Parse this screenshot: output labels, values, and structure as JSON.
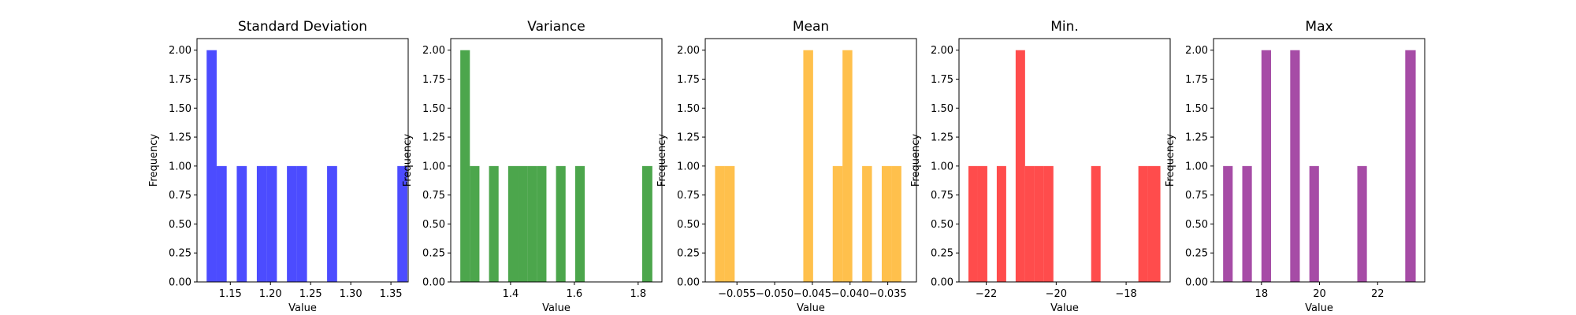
{
  "chart_data": [
    {
      "type": "bar",
      "title": "Standard Deviation",
      "xlabel": "Value",
      "ylabel": "Frequency",
      "color": "#0000ff",
      "xlim": [
        1.1085,
        1.3715
      ],
      "ylim": [
        0,
        2.1
      ],
      "xticks": [
        1.15,
        1.2,
        1.25,
        1.3,
        1.35
      ],
      "xtick_labels": [
        "1.15",
        "1.20",
        "1.25",
        "1.30",
        "1.35"
      ],
      "yticks": [
        0,
        0.25,
        0.5,
        0.75,
        1,
        1.25,
        1.5,
        1.75,
        2
      ],
      "ytick_labels": [
        "0.00",
        "0.25",
        "0.50",
        "0.75",
        "1.00",
        "1.25",
        "1.50",
        "1.75",
        "2.00"
      ],
      "bins": [
        {
          "x0": 1.1205,
          "x1": 1.133,
          "count": 2
        },
        {
          "x0": 1.133,
          "x1": 1.1455,
          "count": 1
        },
        {
          "x0": 1.1455,
          "x1": 1.158,
          "count": 0
        },
        {
          "x0": 1.158,
          "x1": 1.1705,
          "count": 1
        },
        {
          "x0": 1.1705,
          "x1": 1.183,
          "count": 0
        },
        {
          "x0": 1.183,
          "x1": 1.1955,
          "count": 1
        },
        {
          "x0": 1.1955,
          "x1": 1.208,
          "count": 1
        },
        {
          "x0": 1.208,
          "x1": 1.2205,
          "count": 0
        },
        {
          "x0": 1.2205,
          "x1": 1.233,
          "count": 1
        },
        {
          "x0": 1.233,
          "x1": 1.2455,
          "count": 1
        },
        {
          "x0": 1.2455,
          "x1": 1.258,
          "count": 0
        },
        {
          "x0": 1.258,
          "x1": 1.2705,
          "count": 0
        },
        {
          "x0": 1.2705,
          "x1": 1.283,
          "count": 1
        },
        {
          "x0": 1.283,
          "x1": 1.2955,
          "count": 0
        },
        {
          "x0": 1.2955,
          "x1": 1.308,
          "count": 0
        },
        {
          "x0": 1.308,
          "x1": 1.3205,
          "count": 0
        },
        {
          "x0": 1.3205,
          "x1": 1.333,
          "count": 0
        },
        {
          "x0": 1.333,
          "x1": 1.3455,
          "count": 0
        },
        {
          "x0": 1.3455,
          "x1": 1.358,
          "count": 0
        },
        {
          "x0": 1.358,
          "x1": 1.3705,
          "count": 1
        }
      ]
    },
    {
      "type": "bar",
      "title": "Variance",
      "xlabel": "Value",
      "ylabel": "Frequency",
      "color": "#008000",
      "xlim": [
        1.2125,
        1.8745
      ],
      "ylim": [
        0,
        2.1
      ],
      "xticks": [
        1.4,
        1.6,
        1.8
      ],
      "xtick_labels": [
        "1.4",
        "1.6",
        "1.8"
      ],
      "yticks": [
        0,
        0.25,
        0.5,
        0.75,
        1,
        1.25,
        1.5,
        1.75,
        2
      ],
      "ytick_labels": [
        "0.00",
        "0.25",
        "0.50",
        "0.75",
        "1.00",
        "1.25",
        "1.50",
        "1.75",
        "2.00"
      ],
      "bins": [
        {
          "x0": 1.2425,
          "x1": 1.2725,
          "count": 2
        },
        {
          "x0": 1.2725,
          "x1": 1.3025,
          "count": 1
        },
        {
          "x0": 1.3025,
          "x1": 1.3325,
          "count": 0
        },
        {
          "x0": 1.3325,
          "x1": 1.3625,
          "count": 1
        },
        {
          "x0": 1.3625,
          "x1": 1.3925,
          "count": 0
        },
        {
          "x0": 1.3925,
          "x1": 1.4225,
          "count": 1
        },
        {
          "x0": 1.4225,
          "x1": 1.4525,
          "count": 1
        },
        {
          "x0": 1.4525,
          "x1": 1.4825,
          "count": 1
        },
        {
          "x0": 1.4825,
          "x1": 1.5125,
          "count": 1
        },
        {
          "x0": 1.5125,
          "x1": 1.5425,
          "count": 0
        },
        {
          "x0": 1.5425,
          "x1": 1.5725,
          "count": 1
        },
        {
          "x0": 1.5725,
          "x1": 1.6025,
          "count": 0
        },
        {
          "x0": 1.6025,
          "x1": 1.6325,
          "count": 1
        },
        {
          "x0": 1.6325,
          "x1": 1.6625,
          "count": 0
        },
        {
          "x0": 1.6625,
          "x1": 1.6925,
          "count": 0
        },
        {
          "x0": 1.6925,
          "x1": 1.7225,
          "count": 0
        },
        {
          "x0": 1.7225,
          "x1": 1.7525,
          "count": 0
        },
        {
          "x0": 1.7525,
          "x1": 1.7825,
          "count": 0
        },
        {
          "x0": 1.7825,
          "x1": 1.8125,
          "count": 0
        },
        {
          "x0": 1.8125,
          "x1": 1.8445,
          "count": 1
        }
      ]
    },
    {
      "type": "bar",
      "title": "Mean",
      "xlabel": "Value",
      "ylabel": "Frequency",
      "color": "#ffa500",
      "xlim": [
        -0.0592,
        -0.0312
      ],
      "ylim": [
        0,
        2.1
      ],
      "xticks": [
        -0.055,
        -0.05,
        -0.045,
        -0.04,
        -0.035
      ],
      "xtick_labels": [
        "−0.055",
        "−0.050",
        "−0.045",
        "−0.040",
        "−0.035"
      ],
      "yticks": [
        0,
        0.25,
        0.5,
        0.75,
        1,
        1.25,
        1.5,
        1.75,
        2
      ],
      "ytick_labels": [
        "0.00",
        "0.25",
        "0.50",
        "0.75",
        "1.00",
        "1.25",
        "1.50",
        "1.75",
        "2.00"
      ],
      "bins": [
        {
          "x0": -0.0579,
          "x1": -0.0566,
          "count": 1
        },
        {
          "x0": -0.0566,
          "x1": -0.0553,
          "count": 1
        },
        {
          "x0": -0.0553,
          "x1": -0.054,
          "count": 0
        },
        {
          "x0": -0.054,
          "x1": -0.0527,
          "count": 0
        },
        {
          "x0": -0.0527,
          "x1": -0.0514,
          "count": 0
        },
        {
          "x0": -0.0514,
          "x1": -0.0501,
          "count": 0
        },
        {
          "x0": -0.0501,
          "x1": -0.0488,
          "count": 0
        },
        {
          "x0": -0.0488,
          "x1": -0.0475,
          "count": 0
        },
        {
          "x0": -0.0475,
          "x1": -0.0462,
          "count": 0
        },
        {
          "x0": -0.0462,
          "x1": -0.0449,
          "count": 2
        },
        {
          "x0": -0.0449,
          "x1": -0.0436,
          "count": 0
        },
        {
          "x0": -0.0436,
          "x1": -0.0423,
          "count": 0
        },
        {
          "x0": -0.0423,
          "x1": -0.041,
          "count": 1
        },
        {
          "x0": -0.041,
          "x1": -0.0397,
          "count": 2
        },
        {
          "x0": -0.0397,
          "x1": -0.0384,
          "count": 0
        },
        {
          "x0": -0.0384,
          "x1": -0.0371,
          "count": 1
        },
        {
          "x0": -0.0371,
          "x1": -0.0358,
          "count": 0
        },
        {
          "x0": -0.0358,
          "x1": -0.0345,
          "count": 1
        },
        {
          "x0": -0.0345,
          "x1": -0.0332,
          "count": 1
        },
        {
          "x0": -0.0332,
          "x1": -0.0325,
          "count": 0
        }
      ]
    },
    {
      "type": "bar",
      "title": "Min.",
      "xlabel": "Value",
      "ylabel": "Frequency",
      "color": "#ff0000",
      "xlim": [
        -22.78,
        -16.74
      ],
      "ylim": [
        0,
        2.1
      ],
      "xticks": [
        -22,
        -20,
        -18
      ],
      "xtick_labels": [
        "−22",
        "−20",
        "−18"
      ],
      "yticks": [
        0,
        0.25,
        0.5,
        0.75,
        1,
        1.25,
        1.5,
        1.75,
        2
      ],
      "ytick_labels": [
        "0.00",
        "0.25",
        "0.50",
        "0.75",
        "1.00",
        "1.25",
        "1.50",
        "1.75",
        "2.00"
      ],
      "bins": [
        {
          "x0": -22.51,
          "x1": -22.24,
          "count": 1
        },
        {
          "x0": -22.24,
          "x1": -21.97,
          "count": 1
        },
        {
          "x0": -21.97,
          "x1": -21.7,
          "count": 0
        },
        {
          "x0": -21.7,
          "x1": -21.43,
          "count": 1
        },
        {
          "x0": -21.43,
          "x1": -21.16,
          "count": 0
        },
        {
          "x0": -21.16,
          "x1": -20.89,
          "count": 2
        },
        {
          "x0": -20.89,
          "x1": -20.62,
          "count": 1
        },
        {
          "x0": -20.62,
          "x1": -20.35,
          "count": 1
        },
        {
          "x0": -20.35,
          "x1": -20.08,
          "count": 1
        },
        {
          "x0": -20.08,
          "x1": -19.81,
          "count": 0
        },
        {
          "x0": -19.81,
          "x1": -19.54,
          "count": 0
        },
        {
          "x0": -19.54,
          "x1": -19.27,
          "count": 0
        },
        {
          "x0": -19.27,
          "x1": -19.0,
          "count": 0
        },
        {
          "x0": -19.0,
          "x1": -18.73,
          "count": 1
        },
        {
          "x0": -18.73,
          "x1": -18.46,
          "count": 0
        },
        {
          "x0": -18.46,
          "x1": -18.19,
          "count": 0
        },
        {
          "x0": -18.19,
          "x1": -17.92,
          "count": 0
        },
        {
          "x0": -17.92,
          "x1": -17.65,
          "count": 0
        },
        {
          "x0": -17.65,
          "x1": -17.38,
          "count": 1
        },
        {
          "x0": -17.38,
          "x1": -17.02,
          "count": 1
        }
      ]
    },
    {
      "type": "bar",
      "title": "Max",
      "xlabel": "Value",
      "ylabel": "Frequency",
      "color": "#800080",
      "xlim": [
        16.35,
        23.62
      ],
      "ylim": [
        0,
        2.1
      ],
      "xticks": [
        18,
        20,
        22
      ],
      "xtick_labels": [
        "18",
        "20",
        "22"
      ],
      "yticks": [
        0,
        0.25,
        0.5,
        0.75,
        1,
        1.25,
        1.5,
        1.75,
        2
      ],
      "ytick_labels": [
        "0.00",
        "0.25",
        "0.50",
        "0.75",
        "1.00",
        "1.25",
        "1.50",
        "1.75",
        "2.00"
      ],
      "bins": [
        {
          "x0": 16.68,
          "x1": 17.01,
          "count": 1
        },
        {
          "x0": 17.01,
          "x1": 17.34,
          "count": 0
        },
        {
          "x0": 17.34,
          "x1": 17.67,
          "count": 1
        },
        {
          "x0": 17.67,
          "x1": 18.0,
          "count": 0
        },
        {
          "x0": 18.0,
          "x1": 18.33,
          "count": 2
        },
        {
          "x0": 18.33,
          "x1": 18.66,
          "count": 0
        },
        {
          "x0": 18.66,
          "x1": 18.99,
          "count": 0
        },
        {
          "x0": 18.99,
          "x1": 19.32,
          "count": 2
        },
        {
          "x0": 19.32,
          "x1": 19.65,
          "count": 0
        },
        {
          "x0": 19.65,
          "x1": 19.98,
          "count": 1
        },
        {
          "x0": 19.98,
          "x1": 20.31,
          "count": 0
        },
        {
          "x0": 20.31,
          "x1": 20.64,
          "count": 0
        },
        {
          "x0": 20.64,
          "x1": 20.97,
          "count": 0
        },
        {
          "x0": 20.97,
          "x1": 21.3,
          "count": 0
        },
        {
          "x0": 21.3,
          "x1": 21.63,
          "count": 1
        },
        {
          "x0": 21.63,
          "x1": 21.96,
          "count": 0
        },
        {
          "x0": 21.96,
          "x1": 22.29,
          "count": 0
        },
        {
          "x0": 22.29,
          "x1": 22.62,
          "count": 0
        },
        {
          "x0": 22.62,
          "x1": 22.95,
          "count": 0
        },
        {
          "x0": 22.95,
          "x1": 23.31,
          "count": 2
        }
      ]
    }
  ]
}
